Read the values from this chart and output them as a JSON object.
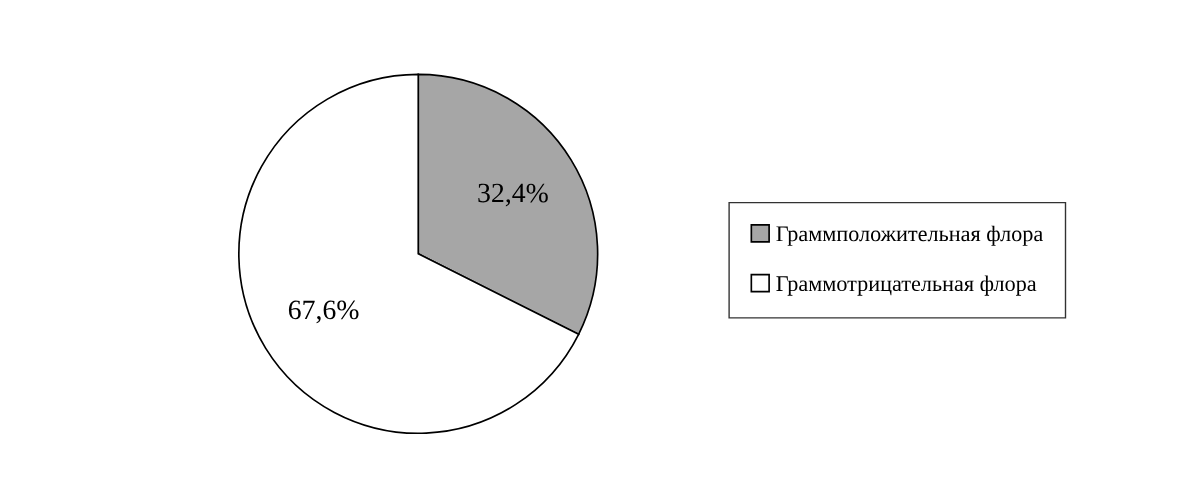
{
  "chart_data": {
    "type": "pie",
    "categories": [
      "Граммположительная флора",
      "Граммотрицательная флора"
    ],
    "values": [
      32.4,
      67.6
    ],
    "value_labels": [
      "32,4%",
      "67,6%"
    ],
    "colors": [
      "#a6a6a6",
      "#ffffff"
    ],
    "legend": "right"
  }
}
